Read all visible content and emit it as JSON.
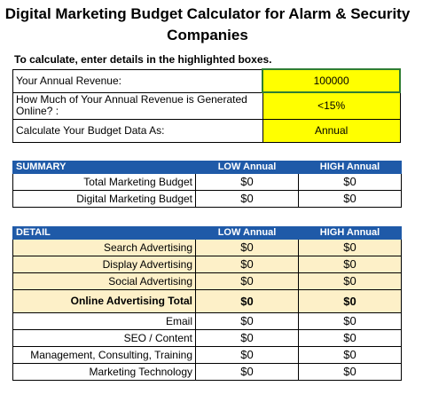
{
  "title": "Digital Marketing Budget Calculator for Alarm & Security Companies",
  "instructions": "To calculate, enter details in the highlighted boxes.",
  "inputs": [
    {
      "label": "Your Annual Revenue:",
      "value": "100000"
    },
    {
      "label": "How Much of Your Annual Revenue is Generated Online? :",
      "value": "<15%"
    },
    {
      "label": "Calculate Your Budget Data As:",
      "value": "Annual"
    }
  ],
  "summary": {
    "header": {
      "label": "SUMMARY",
      "low": "LOW Annual",
      "high": "HIGH Annual"
    },
    "rows": [
      {
        "label": "Total Marketing Budget",
        "low": "$0",
        "high": "$0"
      },
      {
        "label": "Digital Marketing Budget",
        "low": "$0",
        "high": "$0"
      }
    ]
  },
  "detail": {
    "header": {
      "label": "DETAIL",
      "low": "LOW Annual",
      "high": "HIGH Annual"
    },
    "rows": [
      {
        "label": "Search Advertising",
        "low": "$0",
        "high": "$0"
      },
      {
        "label": "Display Advertising",
        "low": "$0",
        "high": "$0"
      },
      {
        "label": "Social Advertising",
        "low": "$0",
        "high": "$0"
      },
      {
        "label": "Online Advertising Total",
        "low": "$0",
        "high": "$0"
      },
      {
        "label": "Email",
        "low": "$0",
        "high": "$0"
      },
      {
        "label": "SEO / Content",
        "low": "$0",
        "high": "$0"
      },
      {
        "label": "Management, Consulting, Training",
        "low": "$0",
        "high": "$0"
      },
      {
        "label": "Marketing Technology",
        "low": "$0",
        "high": "$0"
      }
    ]
  },
  "colors": {
    "header_bg": "#1f5aa8",
    "input_bg": "#ffff00",
    "tint_bg": "#fdf0c8",
    "active_border": "#2e7d32"
  }
}
